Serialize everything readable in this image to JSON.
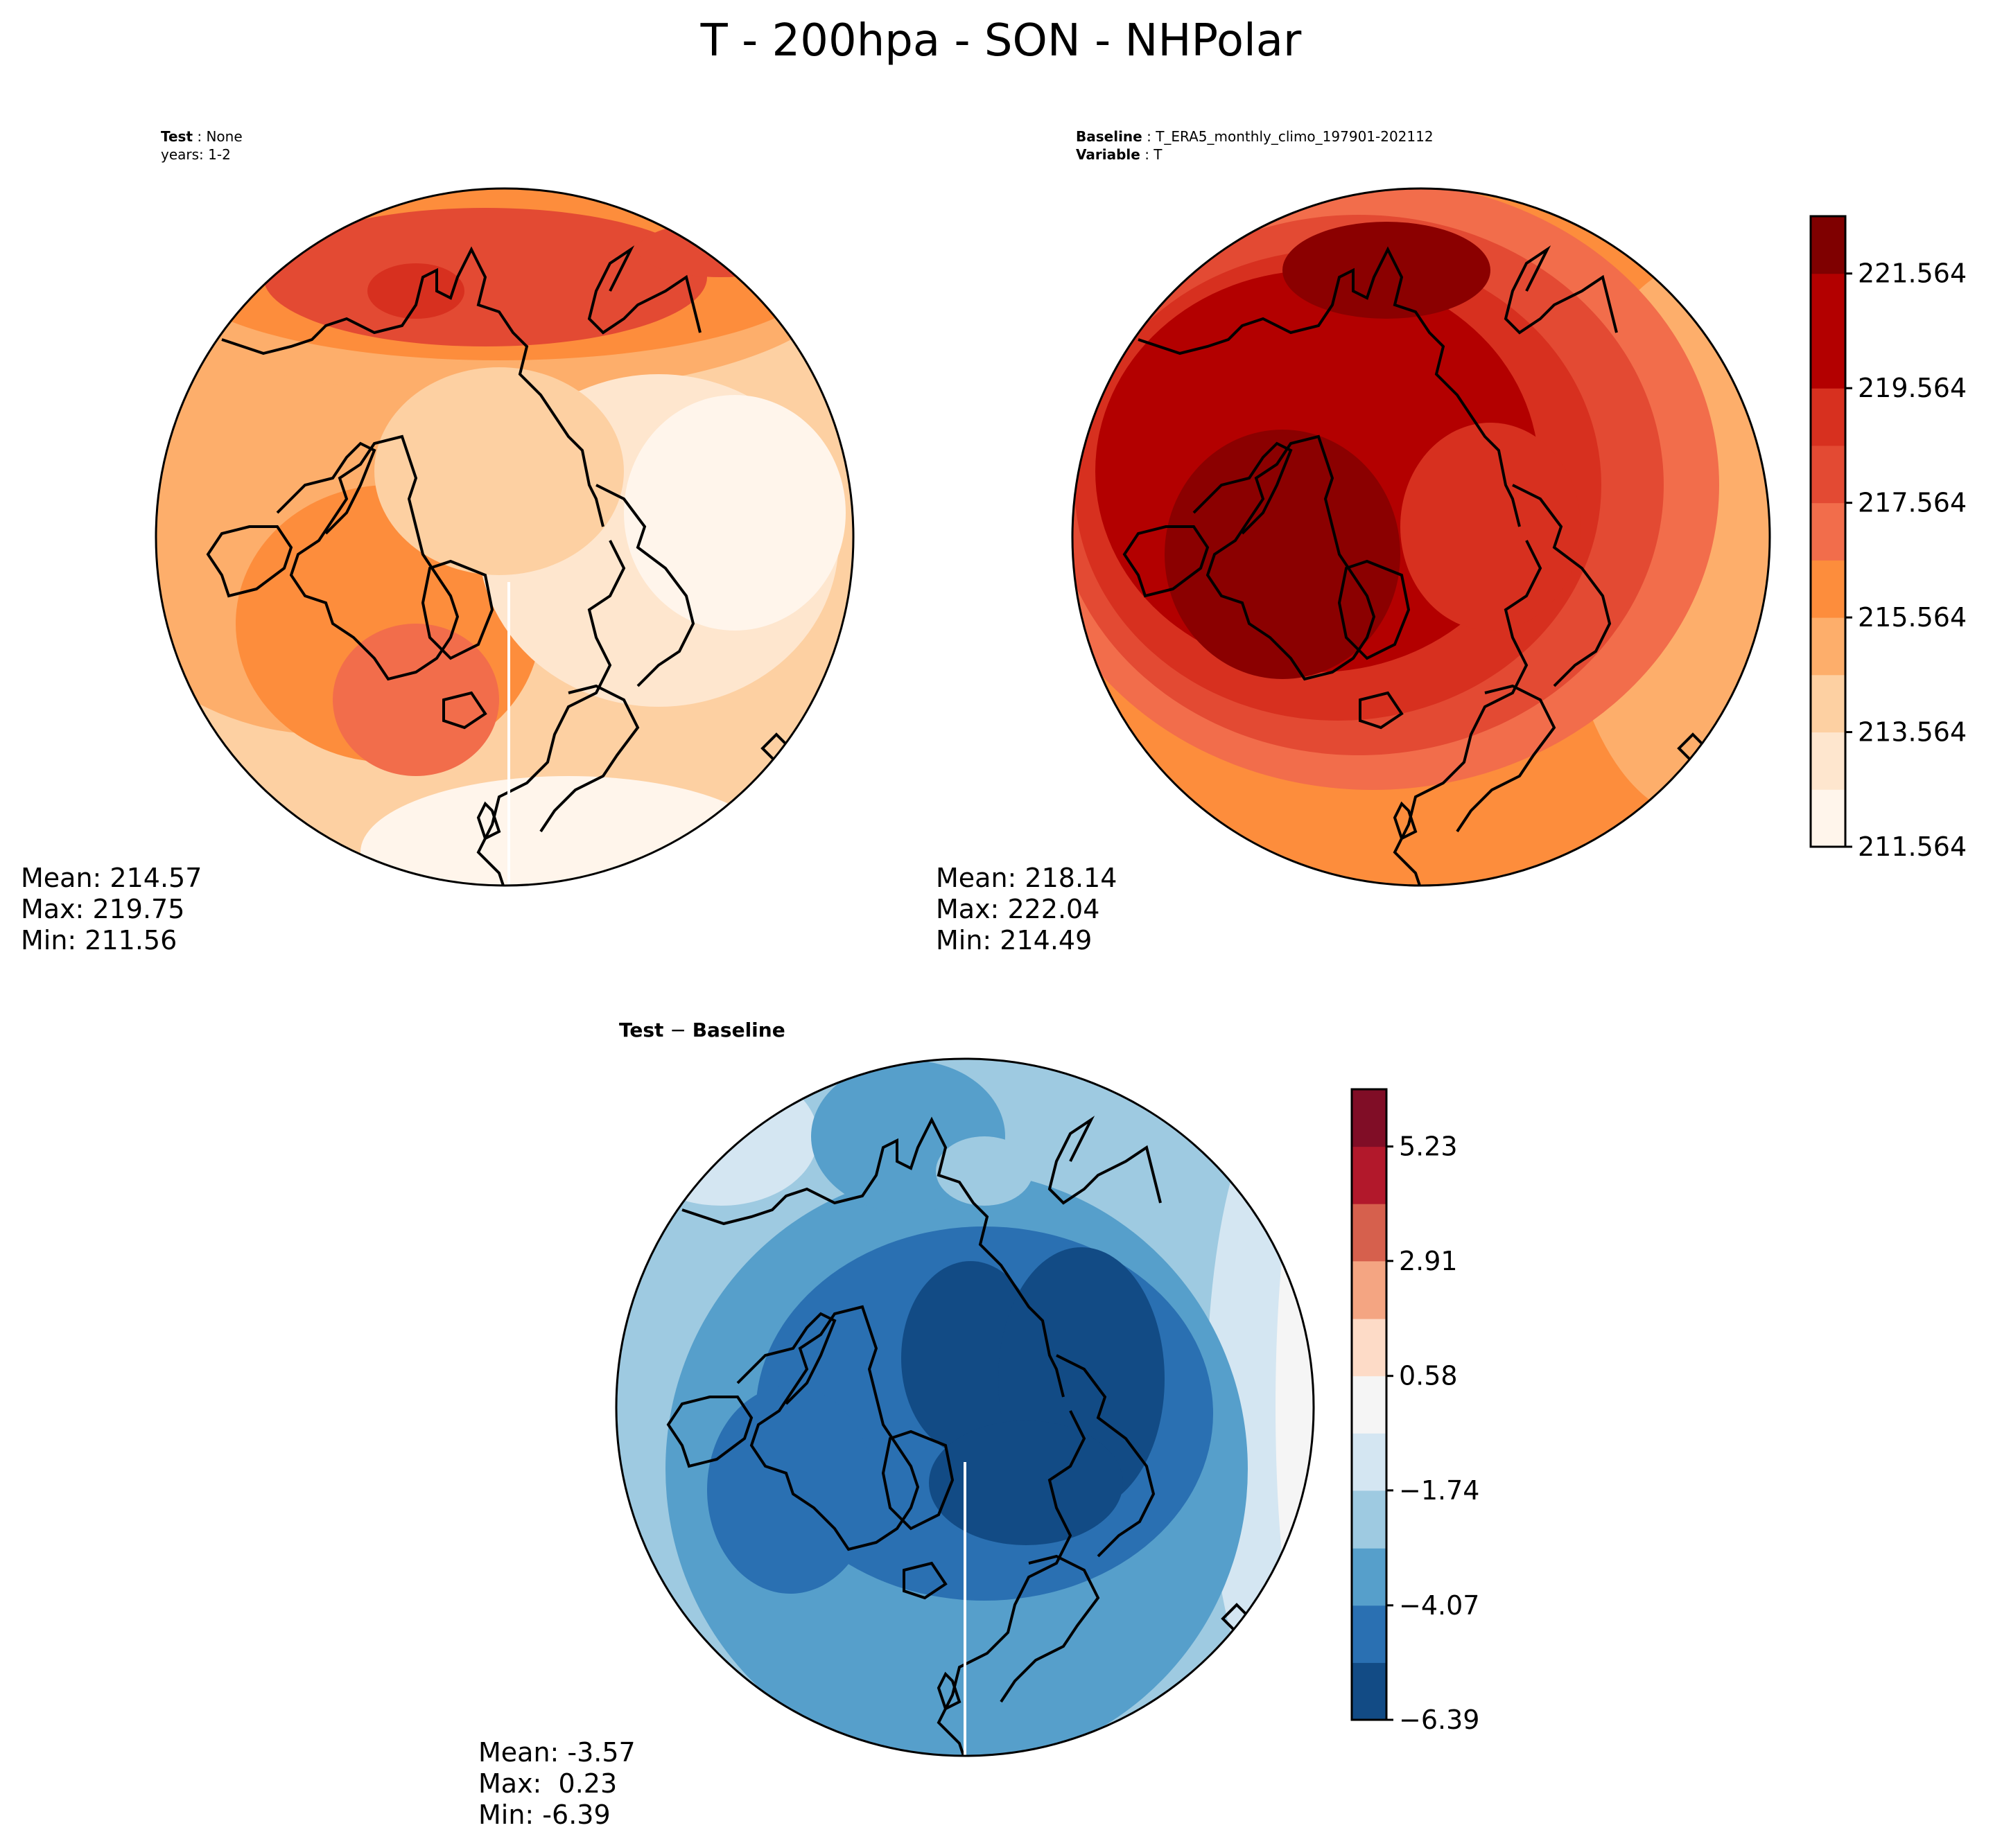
{
  "title": "T - 200hpa - SON - NHPolar",
  "panels": {
    "test": {
      "label_bold": "Test",
      "label_sep": " : ",
      "label_value": "None",
      "years_line": "years: 1-2",
      "stats": {
        "mean": "Mean: 214.57",
        "max": "Max: 219.75",
        "min": "Min: 211.56"
      }
    },
    "baseline": {
      "label_bold": "Baseline",
      "label_sep": " : ",
      "label_value": "T_ERA5_monthly_climo_197901-202112",
      "variable_bold": "Variable",
      "variable_sep": " : ",
      "variable_value": "T",
      "stats": {
        "mean": "Mean: 218.14",
        "max": "Max: 222.04",
        "min": "Min: 214.49"
      }
    },
    "diff": {
      "label_a": "Test",
      "label_minus": " − ",
      "label_b": "Baseline",
      "stats": {
        "mean": "Mean: -3.57",
        "max": "Max:  0.23",
        "min": "Min: -6.39"
      }
    }
  },
  "colorbars": {
    "absolute": {
      "ticks": [
        "211.564",
        "213.564",
        "215.564",
        "217.564",
        "219.564",
        "221.564"
      ],
      "levels": [
        211.564,
        212.564,
        213.564,
        214.564,
        215.564,
        216.564,
        217.564,
        218.564,
        219.564,
        220.564,
        221.564,
        222.564
      ],
      "colors": [
        "#fff5eb",
        "#fee6ce",
        "#fdd0a2",
        "#fdae6b",
        "#fd8d3c",
        "#f26d4b",
        "#e34a33",
        "#d7301f",
        "#b30000",
        "#b30000",
        "#7f0000"
      ]
    },
    "difference": {
      "ticks": [
        "5.23",
        "2.91",
        "0.58",
        "−1.74",
        "−4.07",
        "−6.39"
      ],
      "levels": [
        -6.39,
        -5.23,
        -4.07,
        -2.91,
        -1.74,
        -0.58,
        0.58,
        1.74,
        2.91,
        4.07,
        5.23,
        6.39
      ],
      "colors": [
        "#124b85",
        "#2a70b2",
        "#569fcb",
        "#9ecae1",
        "#d4e6f2",
        "#f5f5f5",
        "#fddbc7",
        "#f4a582",
        "#d6604d",
        "#b2182b",
        "#800d26"
      ]
    }
  }
}
